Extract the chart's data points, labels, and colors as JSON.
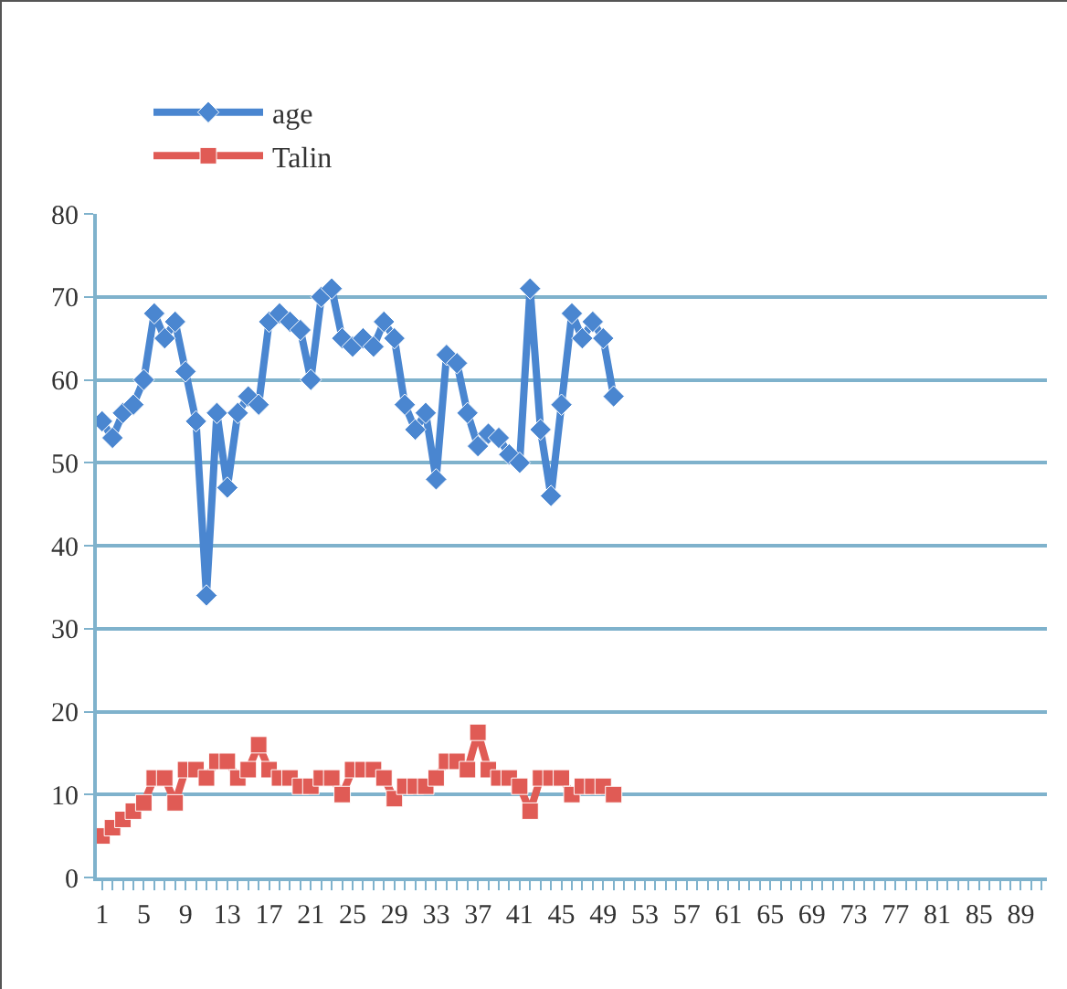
{
  "chart_data": {
    "type": "line",
    "categories": [
      "1",
      null,
      null,
      null,
      "5",
      null,
      null,
      null,
      "9",
      null,
      null,
      null,
      "13",
      null,
      null,
      null,
      "17",
      null,
      null,
      null,
      "21",
      null,
      null,
      null,
      "25",
      null,
      null,
      null,
      "29",
      null,
      null,
      null,
      "33",
      null,
      null,
      null,
      "37",
      null,
      null,
      null,
      "41",
      null,
      null,
      null,
      "45",
      null,
      null,
      null,
      "49",
      null,
      null,
      null,
      "53",
      null,
      null,
      null,
      "57",
      null,
      null,
      null,
      "61",
      null,
      null,
      null,
      "65",
      null,
      null,
      null,
      "69",
      null,
      null,
      null,
      "73",
      null,
      null,
      null,
      "77",
      null,
      null,
      null,
      "81",
      null,
      null,
      null,
      "85",
      null,
      null,
      null,
      "89",
      null,
      null
    ],
    "series": [
      {
        "name": "age",
        "color": "#4a86d0",
        "marker": "diamond",
        "values": [
          55,
          53,
          56,
          57,
          60,
          68,
          65,
          67,
          61,
          55,
          34,
          56,
          47,
          56,
          58,
          57,
          67,
          68,
          67,
          66,
          60,
          70,
          71,
          65,
          64,
          65,
          64,
          67,
          65,
          57,
          54,
          56,
          48,
          63,
          62,
          56,
          52,
          53.5,
          53,
          51,
          50,
          71,
          54,
          46,
          57,
          68,
          65,
          67,
          65,
          58,
          null,
          null,
          null,
          null,
          null,
          null,
          null,
          null,
          null,
          null,
          null,
          null,
          null,
          null,
          null,
          null,
          null,
          null,
          null,
          null,
          null,
          null,
          null,
          null,
          null,
          null,
          null,
          null,
          null,
          null,
          null,
          null,
          null,
          null,
          null,
          null,
          null,
          null,
          null,
          null,
          null
        ]
      },
      {
        "name": "Talin",
        "color": "#e05b55",
        "marker": "square",
        "values": [
          5,
          6,
          7,
          8,
          9,
          12,
          12,
          9,
          13,
          13,
          12,
          14,
          14,
          12,
          13,
          16,
          13,
          12,
          12,
          11,
          11,
          12,
          12,
          10,
          13,
          13,
          13,
          12,
          9.5,
          11,
          11,
          11,
          12,
          14,
          14,
          13,
          17.5,
          13,
          12,
          12,
          11,
          8,
          12,
          12,
          12,
          10,
          11,
          11,
          11,
          10,
          null,
          null,
          null,
          null,
          null,
          null,
          null,
          null,
          null,
          null,
          null,
          null,
          null,
          null,
          null,
          null,
          null,
          null,
          null,
          null,
          null,
          null,
          null,
          null,
          null,
          null,
          null,
          null,
          null,
          null,
          null,
          null,
          null,
          null,
          null,
          null,
          null,
          null,
          null,
          null,
          null
        ]
      }
    ],
    "ylim": [
      0,
      80
    ],
    "yticks": [
      0,
      10,
      20,
      30,
      40,
      50,
      60,
      70,
      80
    ],
    "grid": "y",
    "legend": "top left",
    "line_style": "solid"
  }
}
